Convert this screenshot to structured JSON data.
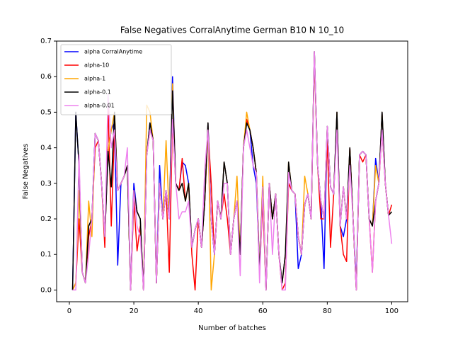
{
  "chart_data": {
    "type": "line",
    "title": "False Negatives CorralAnytime German B10 N 10_10",
    "xlabel": "Number of batches",
    "ylabel": "False Negatives",
    "x": [
      1,
      2,
      3,
      4,
      5,
      6,
      7,
      8,
      9,
      10,
      11,
      12,
      13,
      14,
      15,
      16,
      17,
      18,
      19,
      20,
      21,
      22,
      23,
      24,
      25,
      26,
      27,
      28,
      29,
      30,
      31,
      32,
      33,
      34,
      35,
      36,
      37,
      38,
      39,
      40,
      41,
      42,
      43,
      44,
      45,
      46,
      47,
      48,
      49,
      50,
      51,
      52,
      53,
      54,
      55,
      56,
      57,
      58,
      59,
      60,
      61,
      62,
      63,
      64,
      65,
      66,
      67,
      68,
      69,
      70,
      71,
      72,
      73,
      74,
      75,
      76,
      77,
      78,
      79,
      80,
      81,
      82,
      83,
      84,
      85,
      86,
      87,
      88,
      89,
      90,
      91,
      92,
      93,
      94,
      95,
      96,
      97,
      98,
      99,
      100
    ],
    "xlim": [
      -3.95,
      104.95
    ],
    "xticks": [
      0,
      20,
      40,
      60,
      80,
      100
    ],
    "ylim": [
      -0.033,
      0.7
    ],
    "yticks": [
      {
        "value": 0,
        "label": "0.0"
      },
      0.1,
      0.2,
      0.3,
      0.4,
      0.5,
      0.6,
      0.7
    ],
    "legend": "upper left",
    "grid": false,
    "series": [
      {
        "name": "alpha CorralAnytime",
        "color": "#0000ff",
        "values": [
          0,
          0.5,
          0.35,
          0.05,
          0.02,
          0.18,
          0.2,
          0.44,
          0.42,
          0.3,
          0.15,
          0.39,
          0.45,
          0.47,
          0.07,
          0.3,
          0.32,
          0.35,
          0,
          0.3,
          0.22,
          0.2,
          0,
          0.38,
          0.47,
          0.42,
          0.02,
          0.35,
          0.2,
          0.28,
          0.2,
          0.6,
          0.3,
          0.28,
          0.36,
          0.35,
          0.3,
          0.12,
          0.17,
          0.2,
          0.12,
          0.25,
          0.47,
          0.2,
          0.1,
          0.25,
          0.2,
          0.36,
          0.3,
          0.1,
          0.2,
          0.25,
          0.1,
          0.4,
          0.47,
          0.45,
          0.35,
          0.3,
          0.05,
          0.29,
          0,
          0.3,
          0.2,
          0.27,
          0.1,
          0.02,
          0.1,
          0.3,
          0.28,
          0.27,
          0.06,
          0.1,
          0.24,
          0.27,
          0.2,
          0.67,
          0.35,
          0.25,
          0.06,
          0.46,
          0.29,
          0.27,
          0.5,
          0.18,
          0.15,
          0.2,
          0.4,
          0.2,
          0.02,
          0.38,
          0.39,
          0.38,
          0.2,
          0.18,
          0.37,
          0.3,
          0.5,
          0.3,
          0.21,
          0.22
        ]
      },
      {
        "name": "alpha-10",
        "color": "#ff0000",
        "values": [
          0,
          0.02,
          0.2,
          0.05,
          0.02,
          0.15,
          0.2,
          0.4,
          0.42,
          0.3,
          0.12,
          0.52,
          0.18,
          0.45,
          0.28,
          0.3,
          0.32,
          0.35,
          0,
          0.25,
          0.11,
          0.18,
          0,
          0.38,
          0.45,
          0.42,
          0.02,
          0.3,
          0.2,
          0.28,
          0.05,
          0.48,
          0.3,
          0.28,
          0.37,
          0.25,
          0.3,
          0.1,
          0,
          0.2,
          0.12,
          0.25,
          0.45,
          0.3,
          0.1,
          0.25,
          0.2,
          0.27,
          0.2,
          0.1,
          0.2,
          0.25,
          0.1,
          0.4,
          0.48,
          0.45,
          0.4,
          0.33,
          0.05,
          0.25,
          0,
          0.3,
          0.2,
          0.27,
          0.1,
          0,
          0.02,
          0.3,
          0.28,
          0.27,
          0.15,
          0.1,
          0.24,
          0.27,
          0.2,
          0.65,
          0.35,
          0.2,
          0.2,
          0.42,
          0.12,
          0.27,
          0.48,
          0.18,
          0.1,
          0.08,
          0.4,
          0.2,
          0,
          0.38,
          0.36,
          0.38,
          0.2,
          0.05,
          0.25,
          0.3,
          0.45,
          0.3,
          0.21,
          0.24
        ]
      },
      {
        "name": "alpha-1",
        "color": "#ffa500",
        "values": [
          0,
          0.02,
          0.28,
          0.05,
          0.02,
          0.25,
          0.15,
          0.44,
          0.42,
          0.3,
          0.15,
          0.39,
          0.45,
          0.5,
          0.28,
          0.3,
          0.32,
          0.35,
          0,
          0.28,
          0.22,
          0.2,
          0,
          0.52,
          0.5,
          0.42,
          0.02,
          0.3,
          0.2,
          0.42,
          0.2,
          0.58,
          0.3,
          0.28,
          0.3,
          0.25,
          0.3,
          0.12,
          0.17,
          0.2,
          0.12,
          0.25,
          0.47,
          0,
          0.1,
          0.25,
          0.2,
          0.36,
          0.3,
          0.1,
          0.2,
          0.32,
          0.1,
          0.4,
          0.5,
          0.45,
          0.4,
          0.33,
          0.05,
          0.32,
          0,
          0.3,
          0.2,
          0.27,
          0.1,
          0.02,
          0.1,
          0.36,
          0.28,
          0.27,
          0.15,
          0.1,
          0.32,
          0.27,
          0.2,
          0.67,
          0.35,
          0.25,
          0.2,
          0.46,
          0.29,
          0.27,
          0.5,
          0.18,
          0.29,
          0.2,
          0.4,
          0.2,
          0,
          0.38,
          0.39,
          0.38,
          0.2,
          0.18,
          0.35,
          0.3,
          0.5,
          0.3,
          0.21,
          0.22
        ]
      },
      {
        "name": "alpha-0.1",
        "color": "#000000",
        "values": [
          0,
          0.5,
          0.35,
          0.05,
          0.02,
          0.18,
          0.2,
          0.44,
          0.42,
          0.3,
          0.15,
          0.39,
          0.29,
          0.5,
          0.28,
          0.3,
          0.32,
          0.35,
          0,
          0.28,
          0.22,
          0.2,
          0,
          0.38,
          0.47,
          0.42,
          0.02,
          0.3,
          0.2,
          0.28,
          0.2,
          0.56,
          0.3,
          0.28,
          0.3,
          0.25,
          0.3,
          0.12,
          0.17,
          0.2,
          0.12,
          0.25,
          0.47,
          0.2,
          0.1,
          0.25,
          0.2,
          0.36,
          0.3,
          0.1,
          0.2,
          0.25,
          0.1,
          0.4,
          0.47,
          0.45,
          0.4,
          0.33,
          0.05,
          0.29,
          0,
          0.3,
          0.2,
          0.27,
          0.1,
          0.02,
          0.1,
          0.36,
          0.28,
          0.27,
          0.15,
          0.1,
          0.24,
          0.27,
          0.2,
          0.67,
          0.35,
          0.25,
          0.2,
          0.46,
          0.29,
          0.27,
          0.5,
          0.18,
          0.29,
          0.2,
          0.4,
          0.2,
          0,
          0.38,
          0.39,
          0.38,
          0.2,
          0.18,
          0.25,
          0.3,
          0.5,
          0.3,
          0.21,
          0.22
        ]
      },
      {
        "name": "alpha-0.01",
        "color": "#ee82ee",
        "values": [
          0,
          0,
          0.38,
          0.05,
          0.02,
          0.1,
          0.2,
          0.44,
          0.42,
          0.3,
          0.15,
          0.55,
          0.4,
          0.45,
          0.28,
          0.3,
          0.32,
          0.4,
          0,
          0.28,
          0.18,
          0.15,
          0,
          0.38,
          0.45,
          0.42,
          0.02,
          0.3,
          0.2,
          0.28,
          0.2,
          0.48,
          0.3,
          0.2,
          0.22,
          0.22,
          0.25,
          0.12,
          0.17,
          0.2,
          0.12,
          0.34,
          0.45,
          0.2,
          0.1,
          0.25,
          0.2,
          0.3,
          0.3,
          0.1,
          0.2,
          0.25,
          0.04,
          0.4,
          0.45,
          0.4,
          0.35,
          0.33,
          0.02,
          0.29,
          0,
          0.3,
          0.1,
          0.27,
          0.1,
          0,
          0,
          0.33,
          0.28,
          0.27,
          0.15,
          0.1,
          0.24,
          0.27,
          0.2,
          0.67,
          0.35,
          0.25,
          0.2,
          0.46,
          0.29,
          0.27,
          0.45,
          0.18,
          0.29,
          0.2,
          0.35,
          0.2,
          0,
          0.38,
          0.39,
          0.38,
          0.2,
          0.05,
          0.25,
          0.3,
          0.45,
          0.3,
          0.21,
          0.13
        ]
      }
    ]
  }
}
